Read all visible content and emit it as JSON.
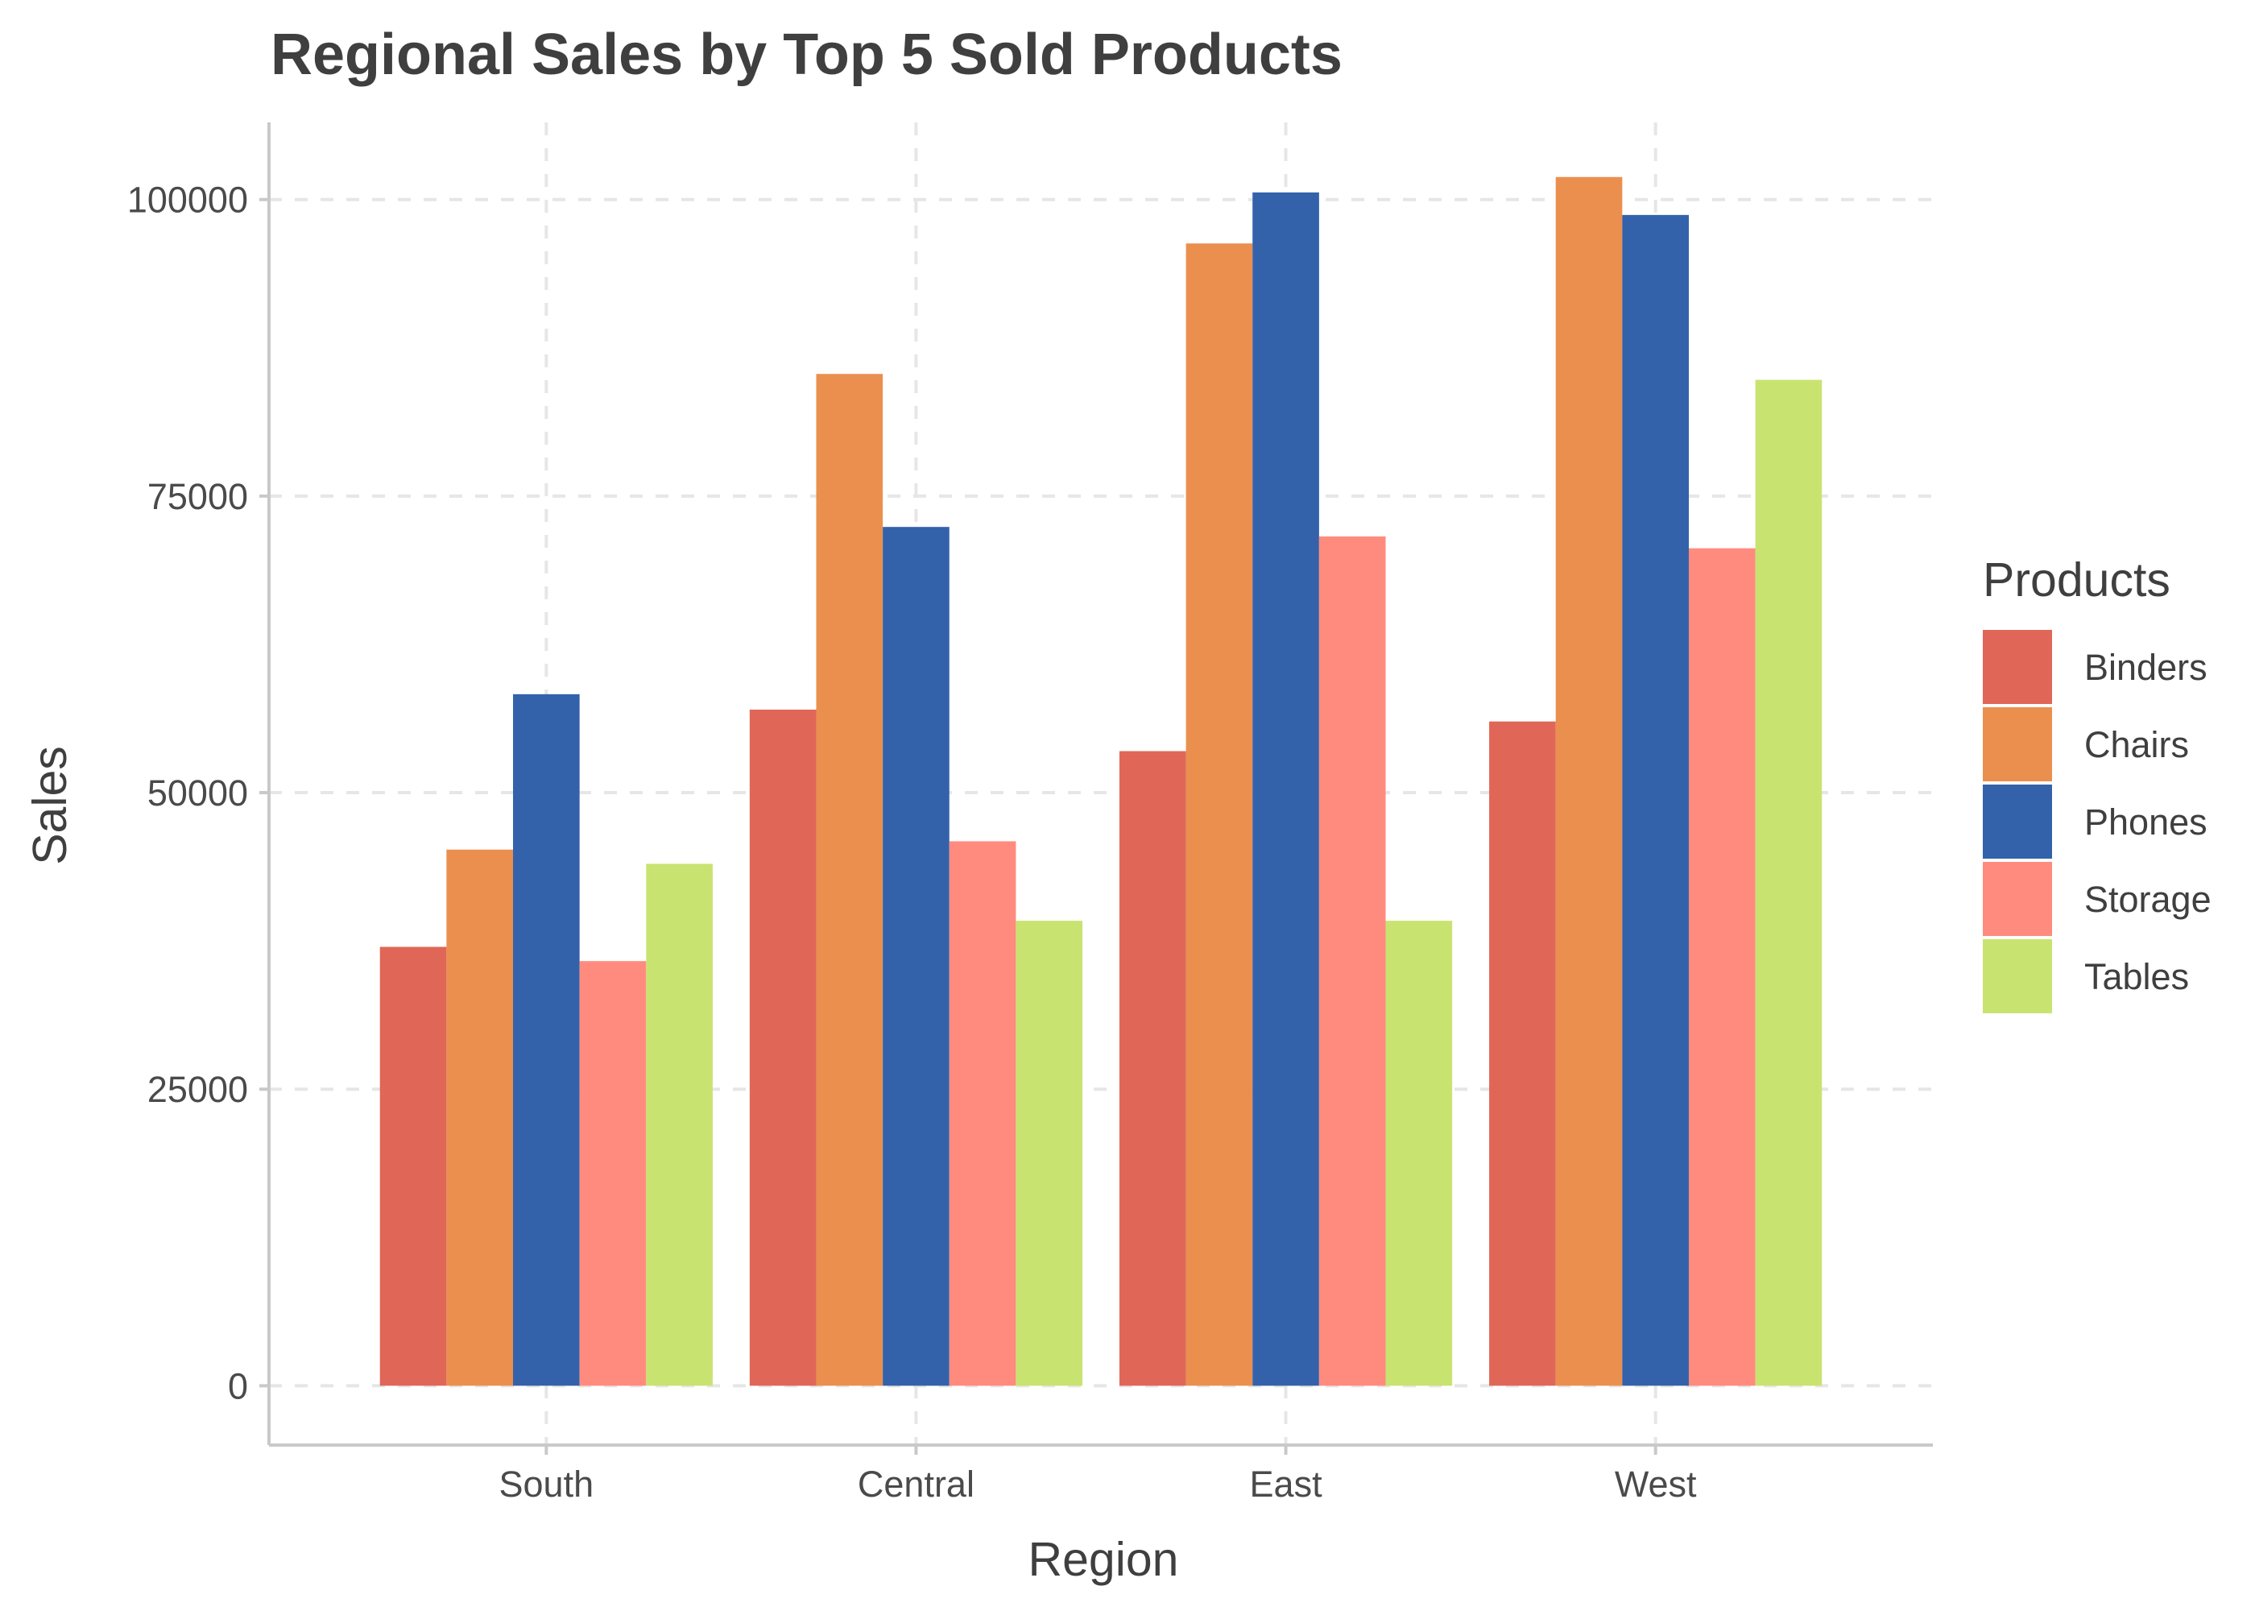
{
  "chart_data": {
    "type": "bar",
    "title": "Regional Sales by Top 5 Sold Products",
    "xlabel": "Region",
    "ylabel": "Sales",
    "categories": [
      "South",
      "Central",
      "East",
      "West"
    ],
    "yticks": [
      0,
      25000,
      50000,
      75000,
      100000
    ],
    "ytick_labels": [
      "0",
      "25000",
      "50000",
      "75000",
      "100000"
    ],
    "ylim": [
      -5000,
      106500
    ],
    "grid": true,
    "legend": {
      "title": "Products",
      "placement": "right"
    },
    "series": [
      {
        "name": "Binders",
        "color": "#E06757",
        "values": [
          37000,
          57000,
          53500,
          56000
        ]
      },
      {
        "name": "Chairs",
        "color": "#EB8F4F",
        "values": [
          45200,
          85300,
          96300,
          101900
        ]
      },
      {
        "name": "Phones",
        "color": "#3362AB",
        "values": [
          58300,
          72400,
          100600,
          98700
        ]
      },
      {
        "name": "Storage",
        "color": "#FF8B7E",
        "values": [
          35800,
          45900,
          71600,
          70600
        ]
      },
      {
        "name": "Tables",
        "color": "#C9E371",
        "values": [
          44000,
          39200,
          39200,
          84800
        ]
      }
    ]
  }
}
